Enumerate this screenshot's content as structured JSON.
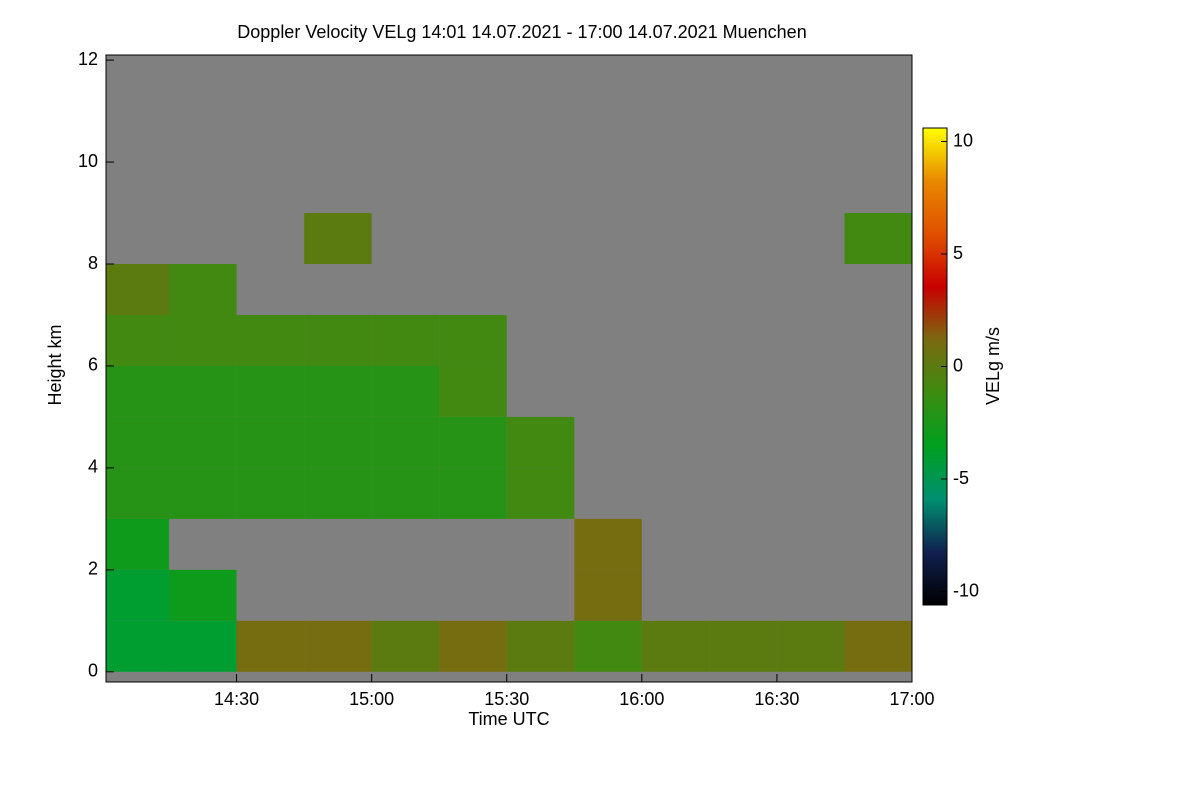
{
  "chart_data": {
    "type": "heatmap",
    "title": "Doppler Velocity VELg   14:01 14.07.2021 - 17:00 14.07.2021 Muenchen",
    "x_label": "Time UTC",
    "y_label": "Height km",
    "colorbar_label": "VELg m/s",
    "x_bins": [
      841,
      855,
      870,
      885,
      900,
      915,
      930,
      945,
      960,
      975,
      990,
      1005,
      1020
    ],
    "y_bins": [
      0,
      1,
      2,
      3,
      4,
      5,
      6,
      7,
      8,
      9,
      10,
      11,
      12
    ],
    "values": [
      [
        -4,
        -4,
        1,
        1,
        0,
        1,
        0,
        -1,
        0,
        0,
        0,
        1
      ],
      [
        -4,
        -3,
        null,
        null,
        null,
        null,
        null,
        1,
        null,
        null,
        null,
        null
      ],
      [
        -3,
        null,
        null,
        null,
        null,
        null,
        null,
        1,
        null,
        null,
        null,
        null
      ],
      [
        -2,
        -2,
        -2,
        -2,
        -2,
        -2,
        -1,
        null,
        null,
        null,
        null,
        null
      ],
      [
        -2,
        -2,
        -2,
        -2,
        -2,
        -2,
        -1,
        null,
        null,
        null,
        null,
        null
      ],
      [
        -2,
        -2,
        -2,
        -2,
        -2,
        -1,
        null,
        null,
        null,
        null,
        null,
        null
      ],
      [
        -1,
        -1,
        -1,
        -1,
        -1,
        -1,
        null,
        null,
        null,
        null,
        null,
        null
      ],
      [
        0,
        -1,
        null,
        null,
        null,
        null,
        null,
        null,
        null,
        null,
        null,
        null
      ],
      [
        null,
        null,
        null,
        0,
        null,
        null,
        null,
        null,
        null,
        null,
        null,
        -1
      ],
      [
        null,
        null,
        null,
        null,
        null,
        null,
        null,
        null,
        null,
        null,
        null,
        null
      ],
      [
        null,
        null,
        null,
        null,
        null,
        null,
        null,
        null,
        null,
        null,
        null,
        null
      ],
      [
        null,
        null,
        null,
        null,
        null,
        null,
        null,
        null,
        null,
        null,
        null,
        null
      ]
    ],
    "xlim": [
      841,
      1020
    ],
    "ylim": [
      -0.2,
      12.1
    ],
    "xticks": [
      {
        "value": 870,
        "label": "14:30"
      },
      {
        "value": 900,
        "label": "15:00"
      },
      {
        "value": 930,
        "label": "15:30"
      },
      {
        "value": 960,
        "label": "16:00"
      },
      {
        "value": 990,
        "label": "16:30"
      },
      {
        "value": 1020,
        "label": "17:00"
      }
    ],
    "yticks": [
      0,
      2,
      4,
      6,
      8,
      10,
      12
    ],
    "clim": [
      -10.6,
      10.6
    ],
    "cticks": [
      -10,
      -5,
      0,
      5,
      10
    ],
    "colormap": [
      "#000000",
      "#102050",
      "#009070",
      "#00a020",
      "#3c8c10",
      "#7a6a10",
      "#c80000",
      "#e05000",
      "#e88800",
      "#ffff00"
    ],
    "background": "#808080"
  }
}
